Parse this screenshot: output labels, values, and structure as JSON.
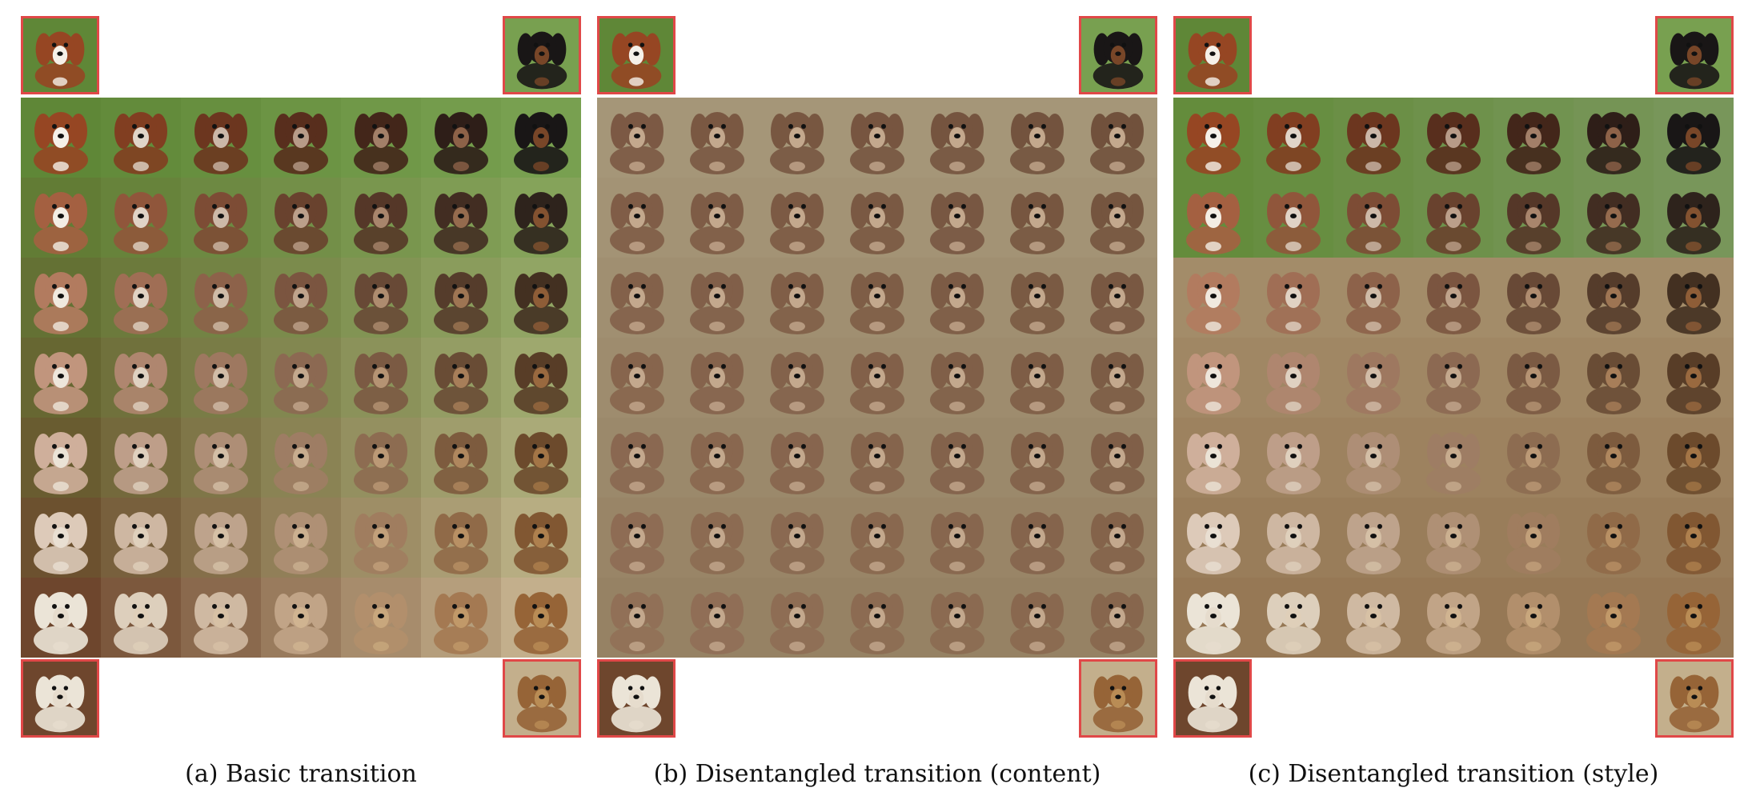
{
  "panels": [
    {
      "id": "a",
      "caption": "(a) Basic transition",
      "mode": "basic"
    },
    {
      "id": "b",
      "caption": "(b) Disentangled transition (content)",
      "mode": "content"
    },
    {
      "id": "c",
      "caption": "(c) Disentangled transition (style)",
      "mode": "style"
    }
  ],
  "grid": {
    "rows": 7,
    "cols": 7,
    "highlight_row": 3,
    "highlight_col": 3
  },
  "colors": {
    "corner_border": "#e04848",
    "highlight_border": "#2aa889"
  },
  "corner_dogs": [
    "top-left-brown-white-spaniel",
    "top-right-black-tan-dog",
    "bottom-left-white-fluffy-dog",
    "bottom-right-yorkie"
  ]
}
